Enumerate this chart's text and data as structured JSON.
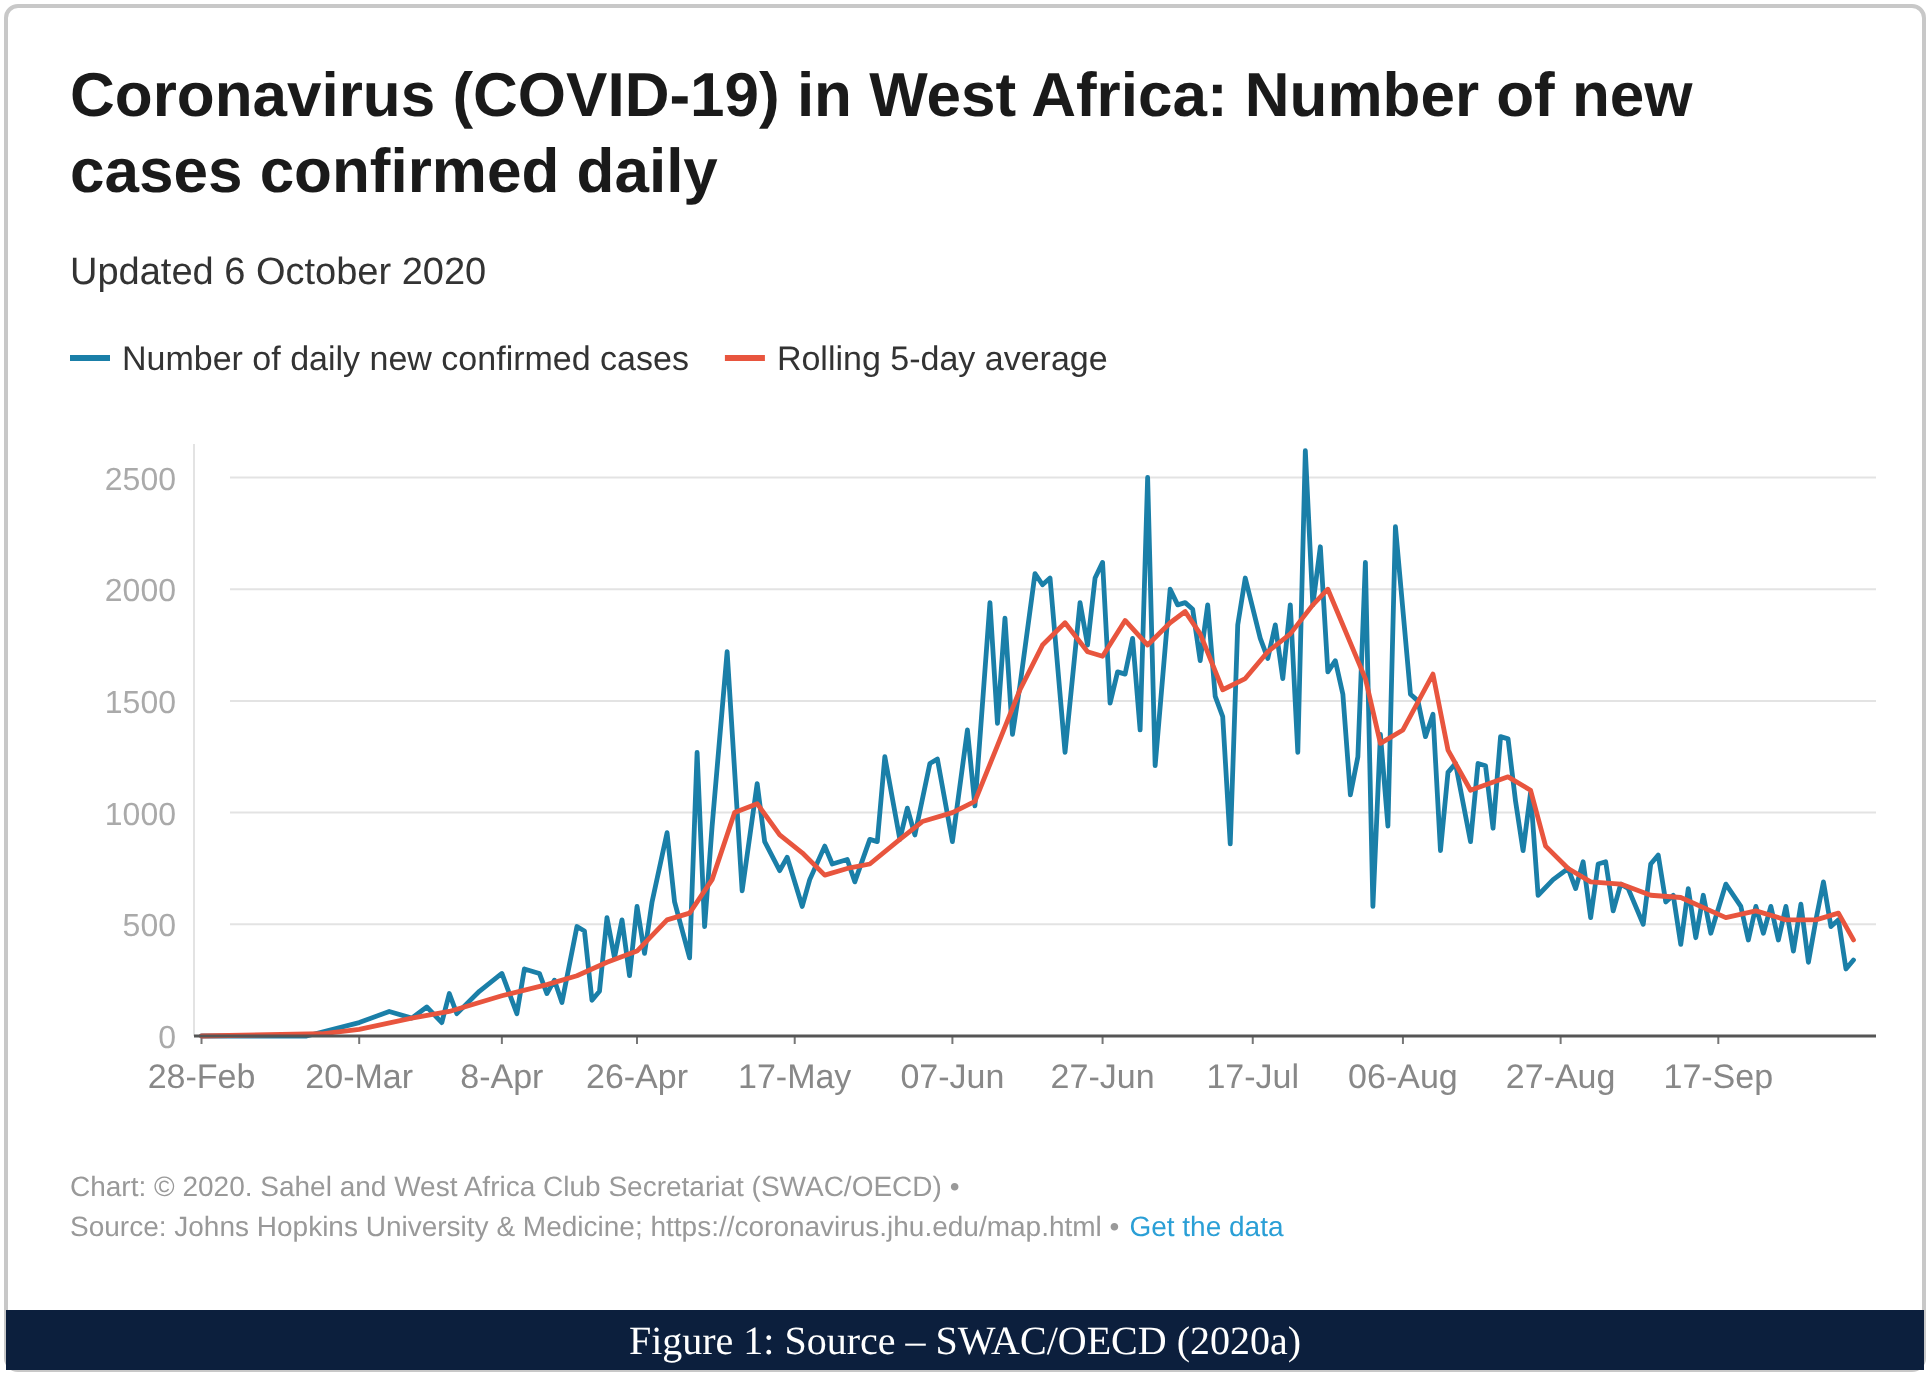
{
  "chart_data": {
    "type": "line",
    "title": "Coronavirus (COVID-19) in West Africa: Number of new cases confirmed daily",
    "subtitle": "Updated 6 October 2020",
    "legend": "top left",
    "grid": "y",
    "line_style": "solid",
    "marker": "none",
    "xlim": [
      "2020-02-27",
      "2020-10-08"
    ],
    "xticks": [
      {
        "value": "2020-02-28",
        "label": "28-Feb"
      },
      {
        "value": "2020-03-20",
        "label": "20-Mar"
      },
      {
        "value": "2020-04-08",
        "label": "8-Apr"
      },
      {
        "value": "2020-04-26",
        "label": "26-Apr"
      },
      {
        "value": "2020-05-17",
        "label": "17-May"
      },
      {
        "value": "2020-06-07",
        "label": "07-Jun"
      },
      {
        "value": "2020-06-27",
        "label": "27-Jun"
      },
      {
        "value": "2020-07-17",
        "label": "17-Jul"
      },
      {
        "value": "2020-08-06",
        "label": "06-Aug"
      },
      {
        "value": "2020-08-27",
        "label": "27-Aug"
      },
      {
        "value": "2020-09-17",
        "label": "17-Sep"
      }
    ],
    "ylim": [
      0,
      2650
    ],
    "yticks": [
      0,
      500,
      1000,
      1500,
      2000,
      2500
    ],
    "series": [
      {
        "name": "Number of daily new confirmed cases",
        "color": "#1a7fa8",
        "x": [
          "2020-02-28",
          "2020-03-01",
          "2020-03-13",
          "2020-03-20",
          "2020-03-24",
          "2020-03-27",
          "2020-03-29",
          "2020-03-31",
          "2020-04-01",
          "2020-04-02",
          "2020-04-05",
          "2020-04-08",
          "2020-04-10",
          "2020-04-11",
          "2020-04-13",
          "2020-04-14",
          "2020-04-15",
          "2020-04-16",
          "2020-04-18",
          "2020-04-19",
          "2020-04-20",
          "2020-04-21",
          "2020-04-22",
          "2020-04-23",
          "2020-04-24",
          "2020-04-25",
          "2020-04-26",
          "2020-04-27",
          "2020-04-28",
          "2020-04-30",
          "2020-05-01",
          "2020-05-03",
          "2020-05-04",
          "2020-05-05",
          "2020-05-06",
          "2020-05-08",
          "2020-05-10",
          "2020-05-12",
          "2020-05-13",
          "2020-05-15",
          "2020-05-16",
          "2020-05-18",
          "2020-05-19",
          "2020-05-21",
          "2020-05-22",
          "2020-05-24",
          "2020-05-25",
          "2020-05-27",
          "2020-05-28",
          "2020-05-29",
          "2020-05-31",
          "2020-06-01",
          "2020-06-02",
          "2020-06-04",
          "2020-06-05",
          "2020-06-07",
          "2020-06-09",
          "2020-06-10",
          "2020-06-12",
          "2020-06-13",
          "2020-06-14",
          "2020-06-15",
          "2020-06-16",
          "2020-06-18",
          "2020-06-19",
          "2020-06-20",
          "2020-06-22",
          "2020-06-24",
          "2020-06-25",
          "2020-06-26",
          "2020-06-27",
          "2020-06-28",
          "2020-06-29",
          "2020-06-30",
          "2020-07-01",
          "2020-07-02",
          "2020-07-03",
          "2020-07-04",
          "2020-07-06",
          "2020-07-07",
          "2020-07-08",
          "2020-07-09",
          "2020-07-10",
          "2020-07-11",
          "2020-07-12",
          "2020-07-13",
          "2020-07-14",
          "2020-07-15",
          "2020-07-16",
          "2020-07-18",
          "2020-07-19",
          "2020-07-20",
          "2020-07-21",
          "2020-07-22",
          "2020-07-23",
          "2020-07-24",
          "2020-07-25",
          "2020-07-26",
          "2020-07-27",
          "2020-07-28",
          "2020-07-29",
          "2020-07-30",
          "2020-07-31",
          "2020-08-01",
          "2020-08-02",
          "2020-08-03",
          "2020-08-04",
          "2020-08-05",
          "2020-08-07",
          "2020-08-08",
          "2020-08-09",
          "2020-08-10",
          "2020-08-11",
          "2020-08-12",
          "2020-08-13",
          "2020-08-15",
          "2020-08-16",
          "2020-08-17",
          "2020-08-18",
          "2020-08-19",
          "2020-08-20",
          "2020-08-21",
          "2020-08-22",
          "2020-08-23",
          "2020-08-24",
          "2020-08-26",
          "2020-08-28",
          "2020-08-29",
          "2020-08-30",
          "2020-08-31",
          "2020-09-01",
          "2020-09-02",
          "2020-09-03",
          "2020-09-04",
          "2020-09-05",
          "2020-09-07",
          "2020-09-08",
          "2020-09-09",
          "2020-09-10",
          "2020-09-11",
          "2020-09-12",
          "2020-09-13",
          "2020-09-14",
          "2020-09-15",
          "2020-09-16",
          "2020-09-18",
          "2020-09-20",
          "2020-09-21",
          "2020-09-22",
          "2020-09-23",
          "2020-09-24",
          "2020-09-25",
          "2020-09-26",
          "2020-09-27",
          "2020-09-28",
          "2020-09-29",
          "2020-09-30",
          "2020-10-01",
          "2020-10-02",
          "2020-10-03",
          "2020-10-04",
          "2020-10-05"
        ],
        "values": [
          0,
          0,
          0,
          60,
          110,
          80,
          130,
          60,
          190,
          100,
          200,
          280,
          100,
          300,
          280,
          190,
          250,
          150,
          490,
          470,
          160,
          200,
          530,
          350,
          520,
          270,
          580,
          370,
          600,
          910,
          600,
          350,
          1270,
          490,
          940,
          1720,
          650,
          1130,
          870,
          740,
          800,
          580,
          700,
          850,
          770,
          790,
          690,
          880,
          870,
          1250,
          880,
          1020,
          900,
          1220,
          1240,
          870,
          1370,
          1030,
          1940,
          1400,
          1870,
          1350,
          1570,
          2070,
          2020,
          2050,
          1270,
          1940,
          1750,
          2050,
          2120,
          1490,
          1630,
          1620,
          1780,
          1370,
          2500,
          1210,
          2000,
          1930,
          1940,
          1910,
          1680,
          1930,
          1520,
          1430,
          860,
          1840,
          2050,
          1780,
          1690,
          1840,
          1600,
          1930,
          1270,
          2620,
          1930,
          2190,
          1630,
          1680,
          1530,
          1080,
          1250,
          2120,
          580,
          1350,
          940,
          2280,
          1530,
          1500,
          1340,
          1440,
          830,
          1180,
          1220,
          870,
          1220,
          1210,
          930,
          1340,
          1330,
          1050,
          830,
          1090,
          630,
          700,
          750,
          660,
          780,
          530,
          770,
          780,
          560,
          680,
          660,
          500,
          770,
          810,
          600,
          630,
          410,
          660,
          440,
          630,
          460,
          680,
          580,
          430,
          580,
          460,
          580,
          430,
          580,
          380,
          590,
          330,
          520,
          690,
          490,
          520,
          300,
          340
        ]
      },
      {
        "name": "Rolling 5-day average",
        "color": "#e8553e",
        "x": [
          "2020-02-28",
          "2020-03-15",
          "2020-03-20",
          "2020-03-27",
          "2020-04-01",
          "2020-04-08",
          "2020-04-14",
          "2020-04-18",
          "2020-04-22",
          "2020-04-26",
          "2020-04-30",
          "2020-05-03",
          "2020-05-06",
          "2020-05-09",
          "2020-05-12",
          "2020-05-15",
          "2020-05-18",
          "2020-05-21",
          "2020-05-24",
          "2020-05-27",
          "2020-05-31",
          "2020-06-03",
          "2020-06-07",
          "2020-06-10",
          "2020-06-13",
          "2020-06-16",
          "2020-06-19",
          "2020-06-22",
          "2020-06-25",
          "2020-06-27",
          "2020-06-30",
          "2020-07-03",
          "2020-07-06",
          "2020-07-08",
          "2020-07-10",
          "2020-07-13",
          "2020-07-16",
          "2020-07-19",
          "2020-07-22",
          "2020-07-25",
          "2020-07-27",
          "2020-08-01",
          "2020-08-03",
          "2020-08-06",
          "2020-08-10",
          "2020-08-12",
          "2020-08-15",
          "2020-08-20",
          "2020-08-23",
          "2020-08-25",
          "2020-08-28",
          "2020-08-31",
          "2020-09-04",
          "2020-09-08",
          "2020-09-12",
          "2020-09-18",
          "2020-09-22",
          "2020-09-26",
          "2020-09-30",
          "2020-10-03",
          "2020-10-05"
        ],
        "values": [
          0,
          10,
          30,
          80,
          110,
          180,
          230,
          270,
          330,
          380,
          520,
          550,
          700,
          1000,
          1040,
          900,
          820,
          720,
          750,
          770,
          880,
          960,
          1000,
          1050,
          1300,
          1550,
          1750,
          1850,
          1720,
          1700,
          1860,
          1750,
          1850,
          1900,
          1800,
          1550,
          1600,
          1720,
          1800,
          1930,
          2000,
          1600,
          1310,
          1370,
          1620,
          1280,
          1100,
          1160,
          1100,
          850,
          750,
          690,
          680,
          630,
          620,
          530,
          560,
          520,
          520,
          550,
          430
        ]
      }
    ],
    "annotations": [
      "Chart: © 2020. Sahel and West Africa Club Secretariat (SWAC/OECD) •",
      "Source: Johns Hopkins University & Medicine; https://coronavirus.jhu.edu/map.html •",
      "Get the data",
      "Figure 1: Source – SWAC/OECD (2020a)"
    ]
  }
}
